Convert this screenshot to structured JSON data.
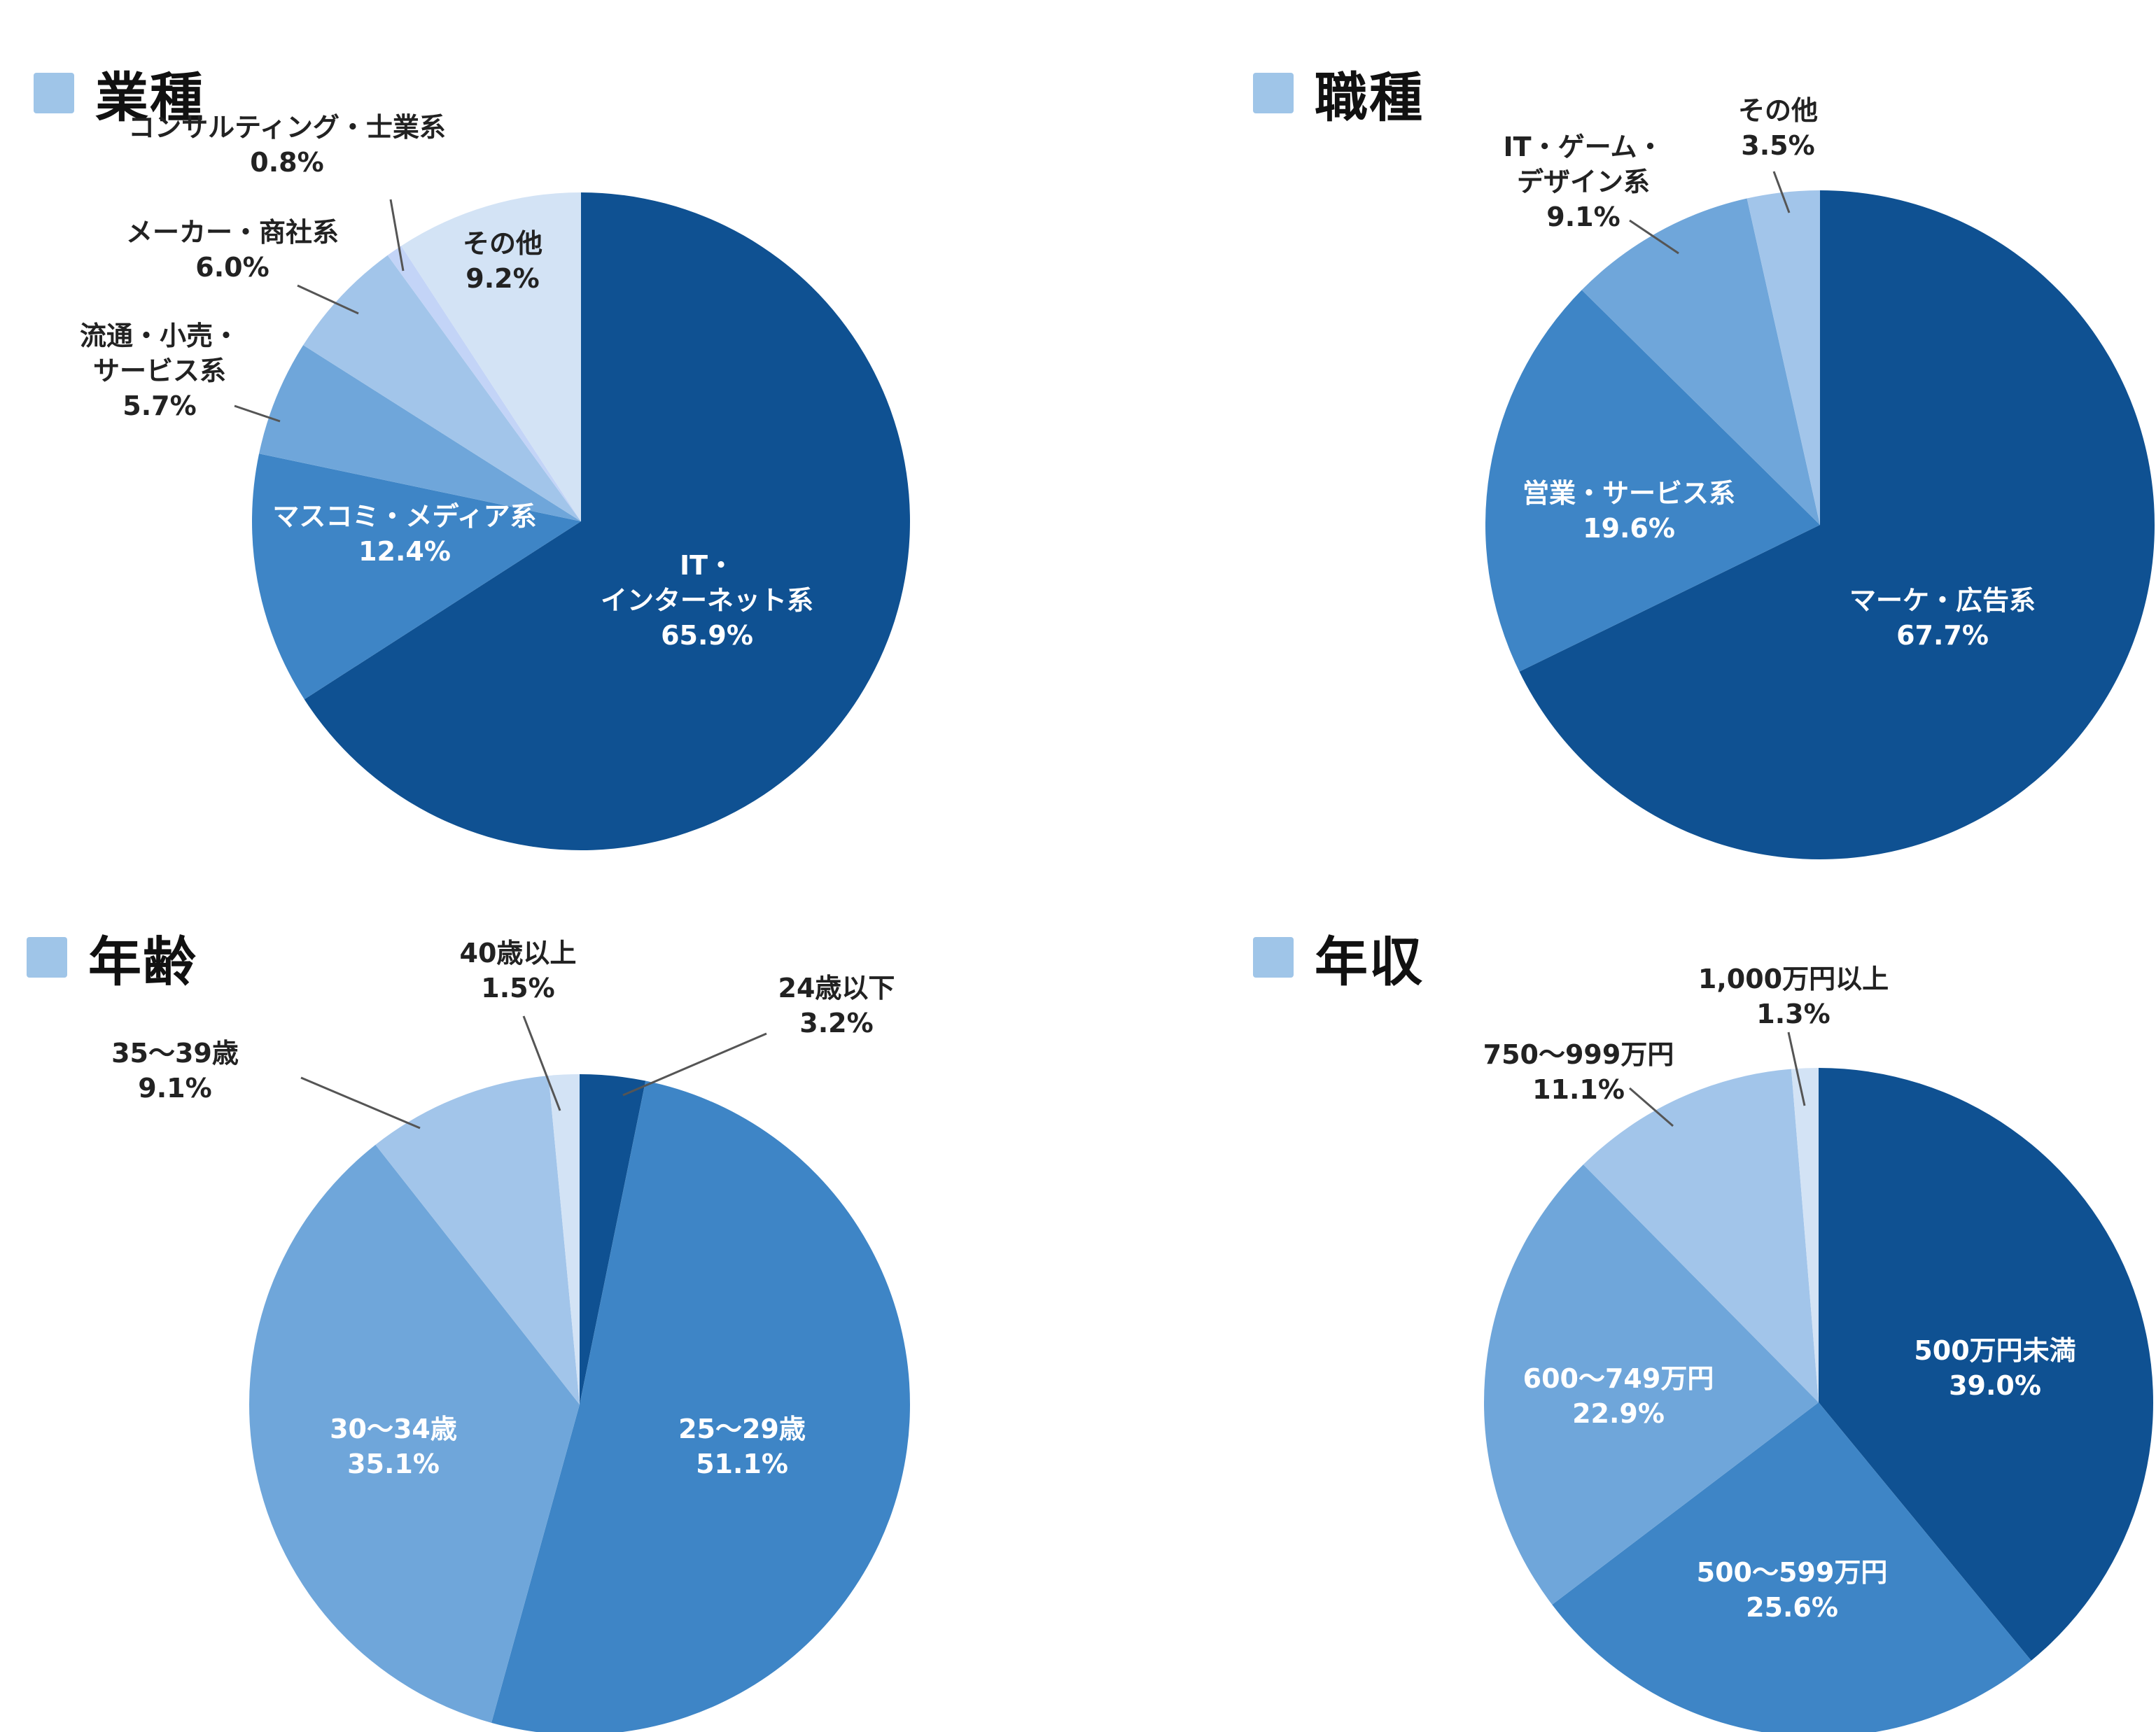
{
  "chart_data": [
    {
      "type": "pie",
      "title": "業種",
      "slices": [
        {
          "label_lines": [
            "IT・",
            "インターネット系"
          ],
          "value": 65.9,
          "pct": "65.9%",
          "color": "#0f5192",
          "text_color": "#ffffff"
        },
        {
          "label_lines": [
            "マスコミ・メディア系"
          ],
          "value": 12.4,
          "pct": "12.4%",
          "color": "#3e85c6",
          "text_color": "#ffffff"
        },
        {
          "label_lines": [
            "流通・小売・",
            "サービス系"
          ],
          "value": 5.7,
          "pct": "5.7%",
          "color": "#6fa6da",
          "text_color": "#222222"
        },
        {
          "label_lines": [
            "メーカー・商社系"
          ],
          "value": 6.0,
          "pct": "6.0%",
          "color": "#a2c5ea",
          "text_color": "#222222"
        },
        {
          "label_lines": [
            "コンサルティング・士業系"
          ],
          "value": 0.8,
          "pct": "0.8%",
          "color": "#c3d4f7",
          "text_color": "#222222"
        },
        {
          "label_lines": [
            "その他"
          ],
          "value": 9.2,
          "pct": "9.2%",
          "color": "#d3e3f5",
          "text_color": "#222222"
        }
      ]
    },
    {
      "type": "pie",
      "title": "職種",
      "slices": [
        {
          "label_lines": [
            "マーケ・広告系"
          ],
          "value": 67.7,
          "pct": "67.7%",
          "color": "#0f5192",
          "text_color": "#ffffff"
        },
        {
          "label_lines": [
            "営業・サービス系"
          ],
          "value": 19.6,
          "pct": "19.6%",
          "color": "#3e85c6",
          "text_color": "#ffffff"
        },
        {
          "label_lines": [
            "IT・ゲーム・",
            "デザイン系"
          ],
          "value": 9.1,
          "pct": "9.1%",
          "color": "#6fa6da",
          "text_color": "#222222"
        },
        {
          "label_lines": [
            "その他"
          ],
          "value": 3.5,
          "pct": "3.5%",
          "color": "#a2c5ea",
          "text_color": "#222222"
        }
      ]
    },
    {
      "type": "pie",
      "title": "年齢",
      "slices": [
        {
          "label_lines": [
            "24歳以下"
          ],
          "value": 3.2,
          "pct": "3.2%",
          "color": "#0f5192",
          "text_color": "#222222"
        },
        {
          "label_lines": [
            "25〜29歳"
          ],
          "value": 51.1,
          "pct": "51.1%",
          "color": "#3e85c6",
          "text_color": "#ffffff"
        },
        {
          "label_lines": [
            "30〜34歳"
          ],
          "value": 35.1,
          "pct": "35.1%",
          "color": "#6fa6da",
          "text_color": "#ffffff"
        },
        {
          "label_lines": [
            "35〜39歳"
          ],
          "value": 9.1,
          "pct": "9.1%",
          "color": "#a2c5ea",
          "text_color": "#222222"
        },
        {
          "label_lines": [
            "40歳以上"
          ],
          "value": 1.5,
          "pct": "1.5%",
          "color": "#d3e3f5",
          "text_color": "#222222"
        }
      ]
    },
    {
      "type": "pie",
      "title": "年収",
      "slices": [
        {
          "label_lines": [
            "500万円未満"
          ],
          "value": 39.0,
          "pct": "39.0%",
          "color": "#0f5192",
          "text_color": "#ffffff"
        },
        {
          "label_lines": [
            "500〜599万円"
          ],
          "value": 25.6,
          "pct": "25.6%",
          "color": "#3e85c6",
          "text_color": "#ffffff"
        },
        {
          "label_lines": [
            "600〜749万円"
          ],
          "value": 22.9,
          "pct": "22.9%",
          "color": "#6fa6da",
          "text_color": "#ffffff"
        },
        {
          "label_lines": [
            "750〜999万円"
          ],
          "value": 11.1,
          "pct": "11.1%",
          "color": "#a2c5ea",
          "text_color": "#222222"
        },
        {
          "label_lines": [
            "1,000万円以上"
          ],
          "value": 1.3,
          "pct": "1.3%",
          "color": "#d3e3f5",
          "text_color": "#222222"
        }
      ]
    }
  ],
  "legend_color": "#9fc5e8",
  "leader_color": "#555555"
}
